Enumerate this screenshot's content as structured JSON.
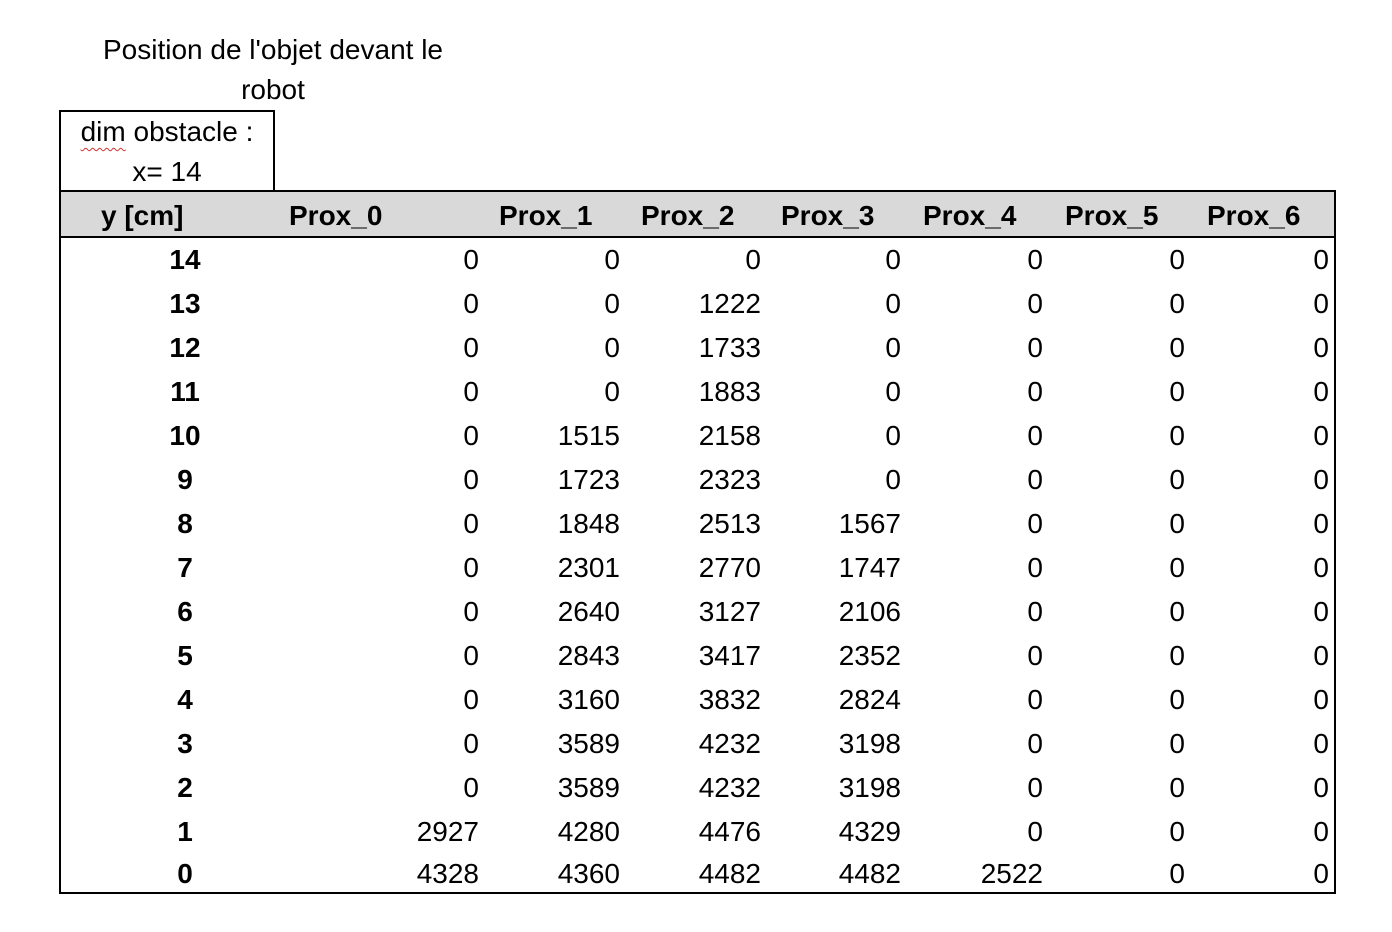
{
  "title": "Position de l'objet devant le robot",
  "title_line1": "Position de l'objet devant le",
  "title_line2": "robot",
  "dim_box": {
    "word_dim": "dim",
    "line1_rest": " obstacle :",
    "line2": "x= 14"
  },
  "table": {
    "columns": [
      "y [cm]",
      "Prox_0",
      "Prox_1",
      "Prox_2",
      "Prox_3",
      "Prox_4",
      "Prox_5",
      "Prox_6"
    ],
    "rows": [
      [
        "14",
        "0",
        "0",
        "0",
        "0",
        "0",
        "0",
        "0"
      ],
      [
        "13",
        "0",
        "0",
        "1222",
        "0",
        "0",
        "0",
        "0"
      ],
      [
        "12",
        "0",
        "0",
        "1733",
        "0",
        "0",
        "0",
        "0"
      ],
      [
        "11",
        "0",
        "0",
        "1883",
        "0",
        "0",
        "0",
        "0"
      ],
      [
        "10",
        "0",
        "1515",
        "2158",
        "0",
        "0",
        "0",
        "0"
      ],
      [
        "9",
        "0",
        "1723",
        "2323",
        "0",
        "0",
        "0",
        "0"
      ],
      [
        "8",
        "0",
        "1848",
        "2513",
        "1567",
        "0",
        "0",
        "0"
      ],
      [
        "7",
        "0",
        "2301",
        "2770",
        "1747",
        "0",
        "0",
        "0"
      ],
      [
        "6",
        "0",
        "2640",
        "3127",
        "2106",
        "0",
        "0",
        "0"
      ],
      [
        "5",
        "0",
        "2843",
        "3417",
        "2352",
        "0",
        "0",
        "0"
      ],
      [
        "4",
        "0",
        "3160",
        "3832",
        "2824",
        "0",
        "0",
        "0"
      ],
      [
        "3",
        "0",
        "3589",
        "4232",
        "3198",
        "0",
        "0",
        "0"
      ],
      [
        "2",
        "0",
        "3589",
        "4232",
        "3198",
        "0",
        "0",
        "0"
      ],
      [
        "1",
        "2927",
        "4280",
        "4476",
        "4329",
        "0",
        "0",
        "0"
      ],
      [
        "0",
        "4328",
        "4360",
        "4482",
        "4482",
        "2522",
        "0",
        "0"
      ]
    ]
  }
}
